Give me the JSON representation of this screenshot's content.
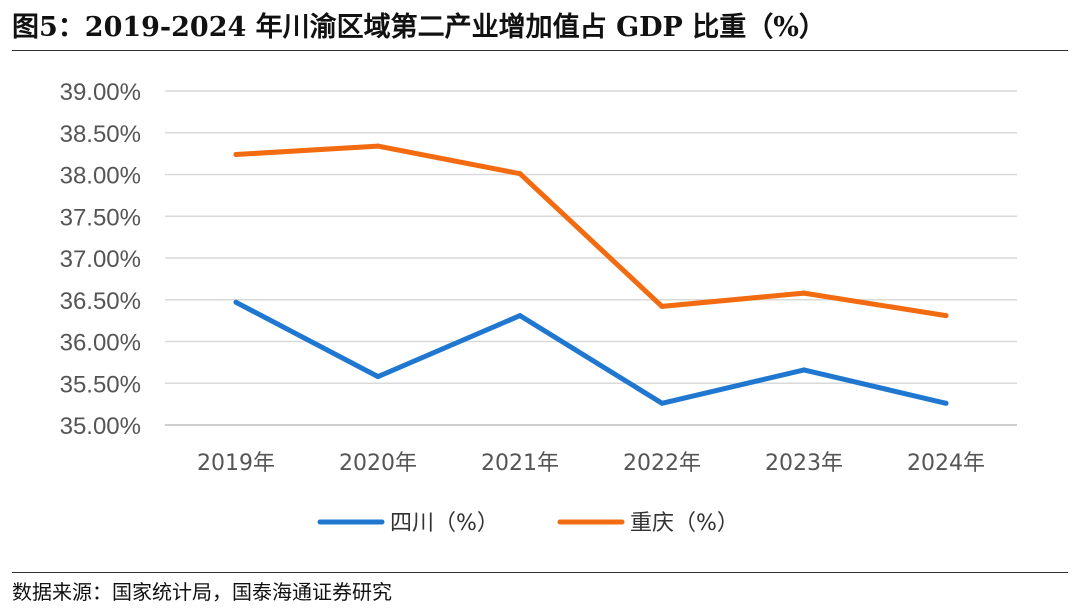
{
  "figure": {
    "title": "图5：2019-2024 年川渝区域第二产业增加值占 GDP 比重（%）",
    "source": "数据来源：国家统计局，国泰海通证券研究"
  },
  "chart_data": {
    "type": "line",
    "title": "2019-2024 年川渝区域第二产业增加值占 GDP 比重（%）",
    "xlabel": "",
    "ylabel": "",
    "categories": [
      "2019年",
      "2020年",
      "2021年",
      "2022年",
      "2023年",
      "2024年"
    ],
    "ylim": [
      35.0,
      39.0
    ],
    "ytick_step": 0.5,
    "yticks": [
      "35.00%",
      "35.50%",
      "36.00%",
      "36.50%",
      "37.00%",
      "37.50%",
      "38.00%",
      "38.50%",
      "39.00%"
    ],
    "grid": true,
    "legend_position": "bottom",
    "series": [
      {
        "name": "四川（%）",
        "color": "#1f77d0",
        "values": [
          36.47,
          35.58,
          36.31,
          35.26,
          35.66,
          35.26
        ]
      },
      {
        "name": "重庆（%）",
        "color": "#f26b10",
        "values": [
          38.24,
          38.34,
          38.01,
          36.42,
          36.58,
          36.31
        ]
      }
    ]
  }
}
